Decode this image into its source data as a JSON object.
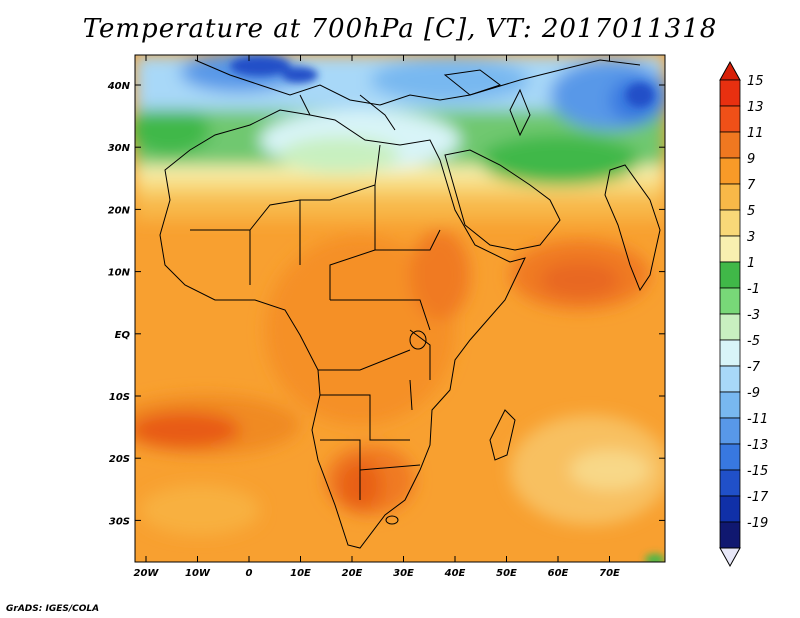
{
  "title": "Temperature at 700hPa [C], VT: 2017011318",
  "credit": "GrADS: IGES/COLA",
  "map": {
    "lat_labels": [
      "40N",
      "30N",
      "20N",
      "10N",
      "EQ",
      "10S",
      "20S",
      "30S"
    ],
    "lon_labels": [
      "20W",
      "10W",
      "0",
      "10E",
      "20E",
      "30E",
      "40E",
      "50E",
      "60E",
      "70E"
    ]
  },
  "colorbar": {
    "labels": [
      "15",
      "13",
      "11",
      "9",
      "7",
      "5",
      "3",
      "1",
      "-1",
      "-3",
      "-5",
      "-7",
      "-9",
      "-11",
      "-13",
      "-15",
      "-17",
      "-19"
    ],
    "colors": [
      "#e83010",
      "#f05018",
      "#f07820",
      "#f89a28",
      "#f8b848",
      "#f8d878",
      "#f8f0b0",
      "#40b848",
      "#78d878",
      "#c8f0c0",
      "#d8f4f8",
      "#a8d8f8",
      "#78b8f0",
      "#5898e8",
      "#3878e0",
      "#2050c8",
      "#1030a8",
      "#101870"
    ]
  }
}
